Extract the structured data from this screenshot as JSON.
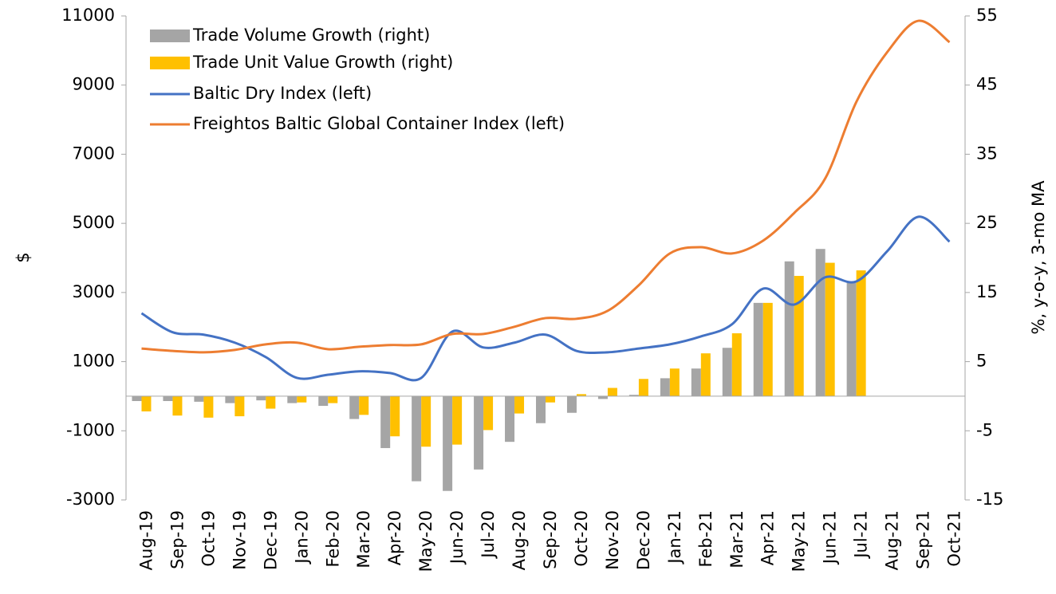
{
  "chart_data": {
    "type": "bar_line",
    "categories": [
      "Aug-19",
      "Sep-19",
      "Oct-19",
      "Nov-19",
      "Dec-19",
      "Jan-20",
      "Feb-20",
      "Mar-20",
      "Apr-20",
      "May-20",
      "Jun-20",
      "Jul-20",
      "Aug-20",
      "Sep-20",
      "Oct-20",
      "Nov-20",
      "Dec-20",
      "Jan-21",
      "Feb-21",
      "Mar-21",
      "Apr-21",
      "May-21",
      "Jun-21",
      "Jul-21",
      "Aug-21",
      "Sep-21",
      "Oct-21"
    ],
    "ylabel": "$",
    "y2label": "%, y-o-y, 3-mo MA",
    "ylim": [
      -3000,
      11000
    ],
    "yticks": [
      -3000,
      -1000,
      1000,
      3000,
      5000,
      7000,
      9000,
      11000
    ],
    "y2lim": [
      -15,
      55
    ],
    "y2ticks": [
      -15,
      -5,
      5,
      15,
      25,
      35,
      45,
      55
    ],
    "legend": "upper left",
    "series": [
      {
        "name": "Trade Volume Growth (right)",
        "kind": "bar",
        "axis": "y2",
        "color": "#a5a5a5",
        "values": [
          -0.7,
          -0.7,
          -0.8,
          -1.0,
          -0.6,
          -1.0,
          -1.4,
          -3.3,
          -7.5,
          -12.3,
          -13.7,
          -10.6,
          -6.6,
          -3.9,
          -2.4,
          -0.4,
          0.2,
          2.6,
          4.0,
          7.0,
          13.5,
          19.5,
          21.3,
          16.4,
          null,
          null,
          null
        ]
      },
      {
        "name": "Trade Unit Value Growth (right)",
        "kind": "bar",
        "axis": "y2",
        "color": "#ffc000",
        "values": [
          -2.2,
          -2.8,
          -3.1,
          -2.9,
          -1.8,
          -0.9,
          -1.0,
          -2.7,
          -5.8,
          -7.3,
          -7.0,
          -4.9,
          -2.5,
          -0.9,
          0.3,
          1.2,
          2.5,
          4.0,
          6.2,
          9.1,
          13.5,
          17.4,
          19.3,
          18.2,
          null,
          null,
          null
        ]
      },
      {
        "name": "Baltic Dry Index (left)",
        "kind": "line",
        "axis": "y",
        "color": "#4472c4",
        "values": [
          2400,
          1850,
          1780,
          1550,
          1130,
          530,
          620,
          720,
          670,
          530,
          1870,
          1410,
          1550,
          1780,
          1310,
          1270,
          1380,
          1500,
          1730,
          2080,
          3110,
          2650,
          3440,
          3320,
          4200,
          5190,
          4470
        ]
      },
      {
        "name": "Freightos Baltic Global Container Index (left)",
        "kind": "line",
        "axis": "y",
        "color": "#ed7d31",
        "values": [
          1380,
          1310,
          1270,
          1340,
          1500,
          1550,
          1360,
          1430,
          1480,
          1500,
          1800,
          1800,
          2010,
          2260,
          2240,
          2470,
          3210,
          4130,
          4310,
          4130,
          4500,
          5300,
          6300,
          8510,
          9960,
          10860,
          10240
        ]
      }
    ]
  }
}
